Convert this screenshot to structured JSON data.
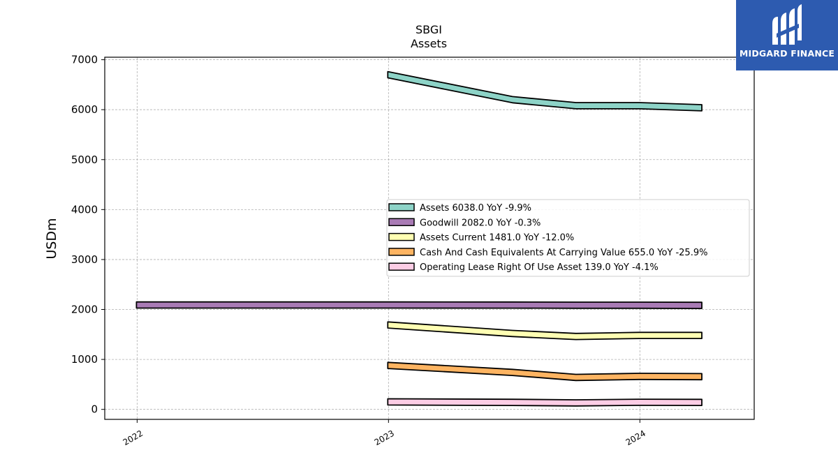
{
  "chart_data": {
    "type": "area",
    "title": "SBGI",
    "subtitle": "Assets",
    "xlabel": "",
    "ylabel": "USDm",
    "ylim": [
      -200,
      7050
    ],
    "yticks": [
      0,
      1000,
      2000,
      3000,
      4000,
      5000,
      6000,
      7000
    ],
    "xticks": [
      "2022",
      "2023",
      "2024"
    ],
    "xlim": [
      "2021-11-15",
      "2024-06-15"
    ],
    "grid": true,
    "legend_position": "center-right",
    "series": [
      {
        "name": "Assets",
        "legend_label": "Assets  6038.0 YoY -9.9%",
        "color": "#8dd3c7",
        "points": [
          {
            "x": "2022-12-31",
            "y": 6700
          },
          {
            "x": "2023-06-30",
            "y": 6200
          },
          {
            "x": "2023-09-30",
            "y": 6080
          },
          {
            "x": "2023-12-31",
            "y": 6080
          },
          {
            "x": "2024-03-31",
            "y": 6038
          }
        ]
      },
      {
        "name": "Goodwill",
        "legend_label": "Goodwill  2082.0 YoY -0.3%",
        "color": "#a97bb5",
        "points": [
          {
            "x": "2021-12-31",
            "y": 2090
          },
          {
            "x": "2022-12-31",
            "y": 2090
          },
          {
            "x": "2023-06-30",
            "y": 2088
          },
          {
            "x": "2023-09-30",
            "y": 2085
          },
          {
            "x": "2023-12-31",
            "y": 2085
          },
          {
            "x": "2024-03-31",
            "y": 2082
          }
        ]
      },
      {
        "name": "Assets Current",
        "legend_label": "Assets Current  1481.0 YoY -12.0%",
        "color": "#ffffb3",
        "points": [
          {
            "x": "2022-12-31",
            "y": 1690
          },
          {
            "x": "2023-06-30",
            "y": 1520
          },
          {
            "x": "2023-09-30",
            "y": 1460
          },
          {
            "x": "2023-12-31",
            "y": 1480
          },
          {
            "x": "2024-03-31",
            "y": 1481
          }
        ]
      },
      {
        "name": "Cash And Cash Equivalents At Carrying Value",
        "legend_label": "Cash And Cash Equivalents At Carrying Value  655.0 YoY -25.9%",
        "color": "#fdb462",
        "points": [
          {
            "x": "2022-12-31",
            "y": 880
          },
          {
            "x": "2023-06-30",
            "y": 740
          },
          {
            "x": "2023-09-30",
            "y": 640
          },
          {
            "x": "2023-12-31",
            "y": 660
          },
          {
            "x": "2024-03-31",
            "y": 655
          }
        ]
      },
      {
        "name": "Operating Lease Right Of Use Asset",
        "legend_label": "Operating Lease Right Of Use Asset  139.0 YoY -4.1%",
        "color": "#fccde5",
        "points": [
          {
            "x": "2022-12-31",
            "y": 150
          },
          {
            "x": "2023-06-30",
            "y": 140
          },
          {
            "x": "2023-09-30",
            "y": 130
          },
          {
            "x": "2023-12-31",
            "y": 142
          },
          {
            "x": "2024-03-31",
            "y": 139
          }
        ]
      }
    ]
  },
  "logo": {
    "text": "MIDGARD FINANCE"
  }
}
